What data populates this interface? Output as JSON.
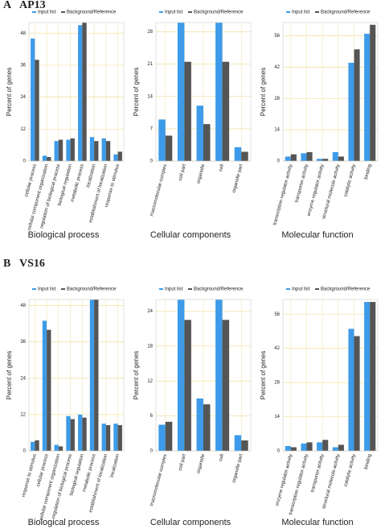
{
  "panels": [
    {
      "letter": "A",
      "name": "AP13"
    },
    {
      "letter": "B",
      "name": "VS16"
    }
  ],
  "chart_data": [
    {
      "type": "bar",
      "title": "Biological process",
      "y_label": "Percent of genes",
      "categories": [
        "cellular process",
        "cellular component organization",
        "regulation of biological process",
        "biological regulation",
        "metabolic process",
        "localization",
        "establishment of localization",
        "response to stimulus"
      ],
      "series": [
        {
          "name": "Input list",
          "color": "#3d9be9",
          "values": [
            46,
            2,
            7.5,
            8,
            51,
            9,
            8.5,
            2.5
          ]
        },
        {
          "name": "Background/Reference",
          "color": "#555555",
          "values": [
            38,
            1.5,
            8,
            8.5,
            52,
            7.5,
            7.5,
            3.5
          ]
        }
      ],
      "ylim": [
        0,
        52
      ],
      "yticks": [
        0,
        12,
        24,
        36,
        48
      ],
      "grid": true
    },
    {
      "type": "bar",
      "title": "Cellular components",
      "y_label": "Percent of genes",
      "categories": [
        "macromolecular complex",
        "cell part",
        "organelle",
        "cell",
        "organelle part"
      ],
      "series": [
        {
          "name": "Input list",
          "color": "#3d9be9",
          "values": [
            9,
            30,
            12,
            30,
            3
          ]
        },
        {
          "name": "Background/Reference",
          "color": "#555555",
          "values": [
            5.5,
            21.5,
            8,
            21.5,
            2
          ]
        }
      ],
      "ylim": [
        0,
        30
      ],
      "yticks": [
        0,
        7,
        14,
        21,
        28
      ],
      "grid": true
    },
    {
      "type": "bar",
      "title": "Molecular function",
      "y_label": "Percent of genes",
      "categories": [
        "transcription regulator activity",
        "transporter activity",
        "enzyme regulator activity",
        "structural molecule activity",
        "catalytic activity",
        "binding"
      ],
      "series": [
        {
          "name": "Input list",
          "color": "#3d9be9",
          "values": [
            2,
            3.5,
            1,
            4,
            44,
            57
          ]
        },
        {
          "name": "Background/Reference",
          "color": "#555555",
          "values": [
            3,
            4,
            1,
            2,
            50,
            61
          ]
        }
      ],
      "ylim": [
        0,
        62
      ],
      "yticks": [
        0,
        14,
        28,
        42,
        56
      ],
      "grid": true
    },
    {
      "type": "bar",
      "title": "Biological process",
      "y_label": "Percent of genes",
      "categories": [
        "response to stimulus",
        "cellular process",
        "cellular component organization",
        "regulation of biological process",
        "biological regulation",
        "metabolic process",
        "establishment of localization",
        "localization"
      ],
      "series": [
        {
          "name": "Input list",
          "color": "#3d9be9",
          "values": [
            3,
            43,
            2,
            11.5,
            12,
            50,
            9,
            9
          ]
        },
        {
          "name": "Background/Reference",
          "color": "#555555",
          "values": [
            3.5,
            40,
            1.5,
            10.5,
            11,
            50,
            8.5,
            8.5
          ]
        }
      ],
      "ylim": [
        0,
        50
      ],
      "yticks": [
        0,
        12,
        24,
        36,
        48
      ],
      "grid": true
    },
    {
      "type": "bar",
      "title": "Cellular components",
      "y_label": "Percent of genes",
      "categories": [
        "macromolecular complex",
        "cell part",
        "organelle",
        "cell",
        "organelle part"
      ],
      "series": [
        {
          "name": "Input list",
          "color": "#3d9be9",
          "values": [
            4.5,
            26,
            9,
            26,
            2.7
          ]
        },
        {
          "name": "Background/Reference",
          "color": "#555555",
          "values": [
            5,
            22.5,
            8,
            22.5,
            1.8
          ]
        }
      ],
      "ylim": [
        0,
        26
      ],
      "yticks": [
        0,
        6,
        12,
        18,
        24
      ],
      "grid": true
    },
    {
      "type": "bar",
      "title": "Molecular function",
      "y_label": "Percent of genes",
      "categories": [
        "enzyme regulator activity",
        "transcription regulator activity",
        "transporter activity",
        "structural molecule activity",
        "catalytic activity",
        "binding"
      ],
      "series": [
        {
          "name": "Input list",
          "color": "#3d9be9",
          "values": [
            2,
            3,
            3.5,
            1.5,
            50,
            61
          ]
        },
        {
          "name": "Background/Reference",
          "color": "#555555",
          "values": [
            1.5,
            3.5,
            4.5,
            2.5,
            47,
            61
          ]
        }
      ],
      "ylim": [
        0,
        62
      ],
      "yticks": [
        0,
        14,
        28,
        42,
        56
      ],
      "grid": true
    }
  ]
}
